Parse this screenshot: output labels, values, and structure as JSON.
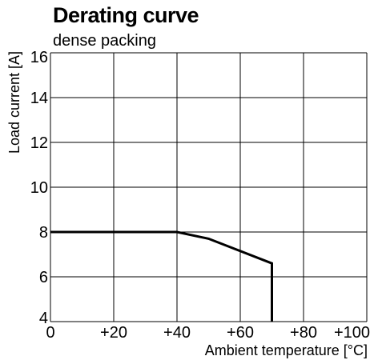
{
  "chart_data": {
    "type": "line",
    "title": "Derating curve",
    "subtitle": "dense packing",
    "xlabel": "Ambient temperature [°C]",
    "ylabel": "Load current [A]",
    "xlim": [
      0,
      100
    ],
    "ylim": [
      4,
      16
    ],
    "xticks": [
      0,
      20,
      40,
      60,
      80,
      100
    ],
    "xtick_labels": [
      "0",
      "+20",
      "+40",
      "+60",
      "+80",
      "+100"
    ],
    "yticks": [
      4,
      6,
      8,
      10,
      12,
      14,
      16
    ],
    "ytick_labels": [
      "4",
      "6",
      "8",
      "10",
      "12",
      "14",
      "16"
    ],
    "grid": true,
    "series": [
      {
        "x": [
          0,
          40,
          50,
          70,
          70
        ],
        "y": [
          8,
          8,
          7.7,
          6.6,
          4
        ]
      }
    ],
    "line_color": "#000000"
  }
}
